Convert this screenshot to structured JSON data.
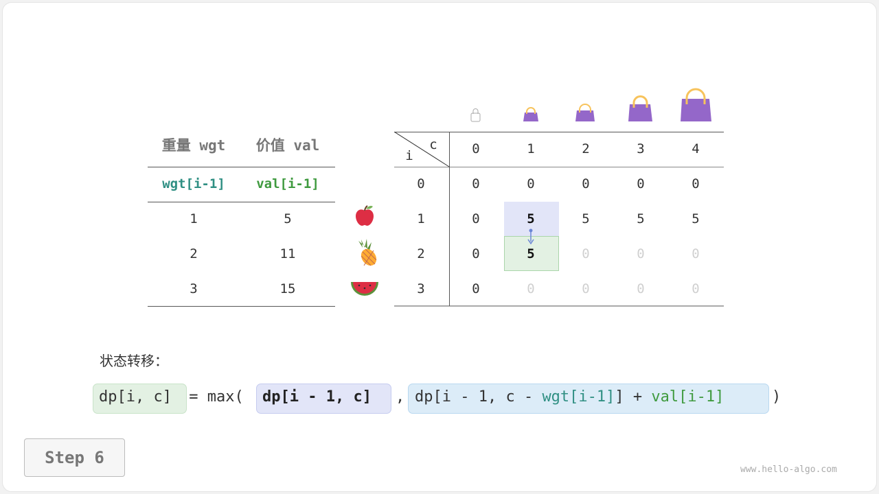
{
  "left_table": {
    "headers": [
      "重量 wgt",
      "价值 val"
    ],
    "subheaders": [
      "wgt[i-1]",
      "val[i-1]"
    ],
    "rows": [
      [
        "1",
        "5"
      ],
      [
        "2",
        "11"
      ],
      [
        "3",
        "15"
      ]
    ],
    "items": [
      "apple-icon",
      "pineapple-icon",
      "watermelon-icon"
    ]
  },
  "dp_table": {
    "corner_c": "c",
    "corner_i": "i",
    "col_headers": [
      "0",
      "1",
      "2",
      "3",
      "4"
    ],
    "row_headers": [
      "0",
      "1",
      "2",
      "3"
    ],
    "rows": [
      [
        "0",
        "0",
        "0",
        "0",
        "0"
      ],
      [
        "0",
        "5",
        "5",
        "5",
        "5"
      ],
      [
        "0",
        "5",
        "0",
        "0",
        "0"
      ],
      [
        "0",
        "0",
        "0",
        "0",
        "0"
      ]
    ],
    "computed": [
      [
        true,
        true,
        true,
        true,
        true
      ],
      [
        true,
        true,
        true,
        true,
        true
      ],
      [
        true,
        true,
        false,
        false,
        false
      ],
      [
        true,
        false,
        false,
        false,
        false
      ]
    ],
    "highlight_source": [
      1,
      1
    ],
    "highlight_target": [
      2,
      1
    ],
    "bag_icons": [
      "bag-capacity-0",
      "bag-capacity-1",
      "bag-capacity-2",
      "bag-capacity-3",
      "bag-capacity-4"
    ]
  },
  "formula": {
    "label": "状态转移：",
    "lhs": "dp[i, c]",
    "eq": " = max(",
    "arg1": "dp[i - 1, c]",
    "comma": ",",
    "arg2_a": "dp[i - 1, c - ",
    "arg2_wgt": "wgt[i-1]",
    "arg2_b": "] + ",
    "arg2_val": "val[i-1]",
    "close": ")"
  },
  "step_label": "Step 6",
  "watermark": "www.hello-algo.com",
  "colors": {
    "wgt": "#2f8f83",
    "val": "#3f9a3f",
    "source_fill": "#e2e5f8",
    "target_fill": "#e3f1e3",
    "arrow": "#6b86d6"
  }
}
